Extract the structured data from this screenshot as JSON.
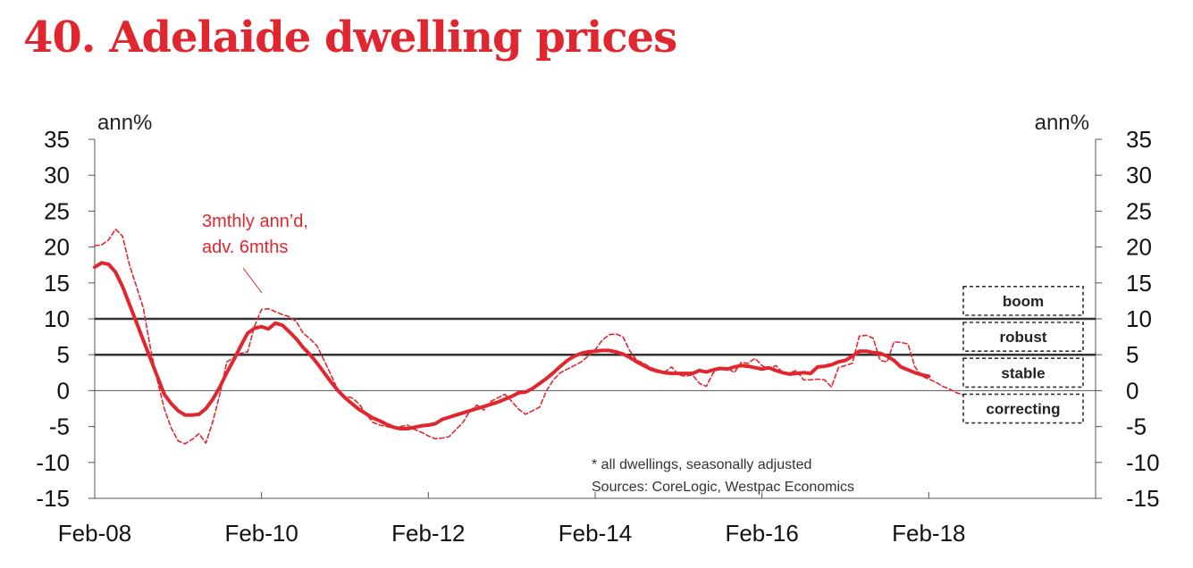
{
  "title": "40. Adelaide dwelling prices",
  "colors": {
    "title": "#e0262e",
    "series": "#e0262e",
    "axis": "#333333",
    "threshold": "#333333"
  },
  "chart_data": {
    "type": "line",
    "title": "40. Adelaide dwelling prices",
    "ylabel_left": "ann%",
    "ylabel_right": "ann%",
    "ylim": [
      -15,
      35
    ],
    "yticks": [
      35,
      30,
      25,
      20,
      15,
      10,
      5,
      0,
      -5,
      -10,
      -15
    ],
    "ytick_labels": [
      "35",
      "30",
      "25",
      "20",
      "15",
      "10",
      "5",
      "0",
      "-5",
      "-10",
      "-15"
    ],
    "xlim": [
      "2008-02",
      "2020-02"
    ],
    "xticks": [
      "2008-02",
      "2010-02",
      "2012-02",
      "2014-02",
      "2016-02",
      "2018-02",
      "2020-02"
    ],
    "xtick_labels": [
      "Feb-08",
      "Feb-10",
      "Feb-12",
      "Feb-14",
      "Feb-16",
      "Feb-18",
      ""
    ],
    "thresholds": [
      10,
      5
    ],
    "grid": false,
    "series": [
      {
        "style": "solid",
        "points": [
          [
            "2008-02",
            17.2
          ],
          [
            "2008-03",
            17.8
          ],
          [
            "2008-04",
            17.6
          ],
          [
            "2008-05",
            16.5
          ],
          [
            "2008-06",
            14.5
          ],
          [
            "2008-07",
            12
          ],
          [
            "2008-08",
            9.5
          ],
          [
            "2008-09",
            7
          ],
          [
            "2008-10",
            4.5
          ],
          [
            "2008-11",
            2
          ],
          [
            "2008-12",
            -0.5
          ],
          [
            "2009-01",
            -1.8
          ],
          [
            "2009-02",
            -2.8
          ],
          [
            "2009-03",
            -3.4
          ],
          [
            "2009-04",
            -3.4
          ],
          [
            "2009-05",
            -3.3
          ],
          [
            "2009-06",
            -2.5
          ],
          [
            "2009-07",
            -1.2
          ],
          [
            "2009-08",
            0.5
          ],
          [
            "2009-09",
            2.5
          ],
          [
            "2009-10",
            4.3
          ],
          [
            "2009-11",
            6.2
          ],
          [
            "2009-12",
            8
          ],
          [
            "2010-01",
            8.7
          ],
          [
            "2010-02",
            8.9
          ],
          [
            "2010-03",
            8.6
          ],
          [
            "2010-04",
            9.4
          ],
          [
            "2010-05",
            9.1
          ],
          [
            "2010-06",
            8.2
          ],
          [
            "2010-07",
            7.2
          ],
          [
            "2010-08",
            6
          ],
          [
            "2010-09",
            5
          ],
          [
            "2010-10",
            3.8
          ],
          [
            "2010-11",
            2.5
          ],
          [
            "2010-12",
            1.2
          ],
          [
            "2011-01",
            0
          ],
          [
            "2011-02",
            -1
          ],
          [
            "2011-03",
            -1.8
          ],
          [
            "2011-04",
            -2.6
          ],
          [
            "2011-05",
            -3.2
          ],
          [
            "2011-06",
            -3.8
          ],
          [
            "2011-07",
            -4.2
          ],
          [
            "2011-08",
            -4.7
          ],
          [
            "2011-09",
            -5.1
          ],
          [
            "2011-10",
            -5.3
          ],
          [
            "2011-11",
            -5.3
          ],
          [
            "2011-12",
            -5.1
          ],
          [
            "2012-01",
            -4.9
          ],
          [
            "2012-02",
            -4.8
          ],
          [
            "2012-03",
            -4.6
          ],
          [
            "2012-04",
            -4
          ],
          [
            "2012-05",
            -3.7
          ],
          [
            "2012-06",
            -3.4
          ],
          [
            "2012-07",
            -3.1
          ],
          [
            "2012-08",
            -2.8
          ],
          [
            "2012-09",
            -2.5
          ],
          [
            "2012-10",
            -2.2
          ],
          [
            "2012-11",
            -1.9
          ],
          [
            "2012-12",
            -1.6
          ],
          [
            "2013-01",
            -1.2
          ],
          [
            "2013-02",
            -0.8
          ],
          [
            "2013-03",
            -0.3
          ],
          [
            "2013-04",
            -0.2
          ],
          [
            "2013-05",
            0.3
          ],
          [
            "2013-06",
            1
          ],
          [
            "2013-07",
            1.7
          ],
          [
            "2013-08",
            2.5
          ],
          [
            "2013-09",
            3.4
          ],
          [
            "2013-10",
            4.2
          ],
          [
            "2013-11",
            4.8
          ],
          [
            "2013-12",
            5.2
          ],
          [
            "2014-01",
            5.4
          ],
          [
            "2014-02",
            5.5
          ],
          [
            "2014-03",
            5.6
          ],
          [
            "2014-04",
            5.6
          ],
          [
            "2014-05",
            5.4
          ],
          [
            "2014-06",
            5.1
          ],
          [
            "2014-07",
            4.6
          ],
          [
            "2014-08",
            4
          ],
          [
            "2014-09",
            3.5
          ],
          [
            "2014-10",
            3
          ],
          [
            "2014-11",
            2.7
          ],
          [
            "2014-12",
            2.5
          ],
          [
            "2015-01",
            2.4
          ],
          [
            "2015-02",
            2.4
          ],
          [
            "2015-03",
            2.4
          ],
          [
            "2015-04",
            2.4
          ],
          [
            "2015-05",
            2.8
          ],
          [
            "2015-06",
            2.6
          ],
          [
            "2015-07",
            2.9
          ],
          [
            "2015-08",
            3.1
          ],
          [
            "2015-09",
            3
          ],
          [
            "2015-10",
            3.3
          ],
          [
            "2015-11",
            3.5
          ],
          [
            "2015-12",
            3.4
          ],
          [
            "2016-01",
            3.2
          ],
          [
            "2016-02",
            3
          ],
          [
            "2016-03",
            3.2
          ],
          [
            "2016-04",
            2.8
          ],
          [
            "2016-05",
            2.5
          ],
          [
            "2016-06",
            2.3
          ],
          [
            "2016-07",
            2.4
          ],
          [
            "2016-08",
            2.5
          ],
          [
            "2016-09",
            2.4
          ],
          [
            "2016-10",
            3.3
          ],
          [
            "2016-11",
            3.4
          ],
          [
            "2016-12",
            3.6
          ],
          [
            "2017-01",
            4
          ],
          [
            "2017-02",
            4.2
          ],
          [
            "2017-03",
            4.8
          ],
          [
            "2017-04",
            5.5
          ],
          [
            "2017-05",
            5.5
          ],
          [
            "2017-06",
            5.3
          ],
          [
            "2017-07",
            5.2
          ],
          [
            "2017-08",
            4.8
          ],
          [
            "2017-09",
            4.2
          ],
          [
            "2017-10",
            3.3
          ],
          [
            "2017-11",
            2.9
          ],
          [
            "2017-12",
            2.5
          ],
          [
            "2018-01",
            2.2
          ],
          [
            "2018-02",
            2
          ]
        ]
      },
      {
        "name": "3mthly ann'd, adv. 6mths",
        "style": "dashed",
        "points": [
          [
            "2008-02",
            20.2
          ],
          [
            "2008-03",
            20.3
          ],
          [
            "2008-04",
            21
          ],
          [
            "2008-05",
            22.5
          ],
          [
            "2008-06",
            21.5
          ],
          [
            "2008-07",
            17.5
          ],
          [
            "2008-08",
            14.5
          ],
          [
            "2008-09",
            11.5
          ],
          [
            "2008-10",
            6
          ],
          [
            "2008-11",
            1.5
          ],
          [
            "2008-12",
            -2.5
          ],
          [
            "2009-01",
            -5.2
          ],
          [
            "2009-02",
            -7
          ],
          [
            "2009-03",
            -7.4
          ],
          [
            "2009-04",
            -6.8
          ],
          [
            "2009-05",
            -6
          ],
          [
            "2009-06",
            -7.3
          ],
          [
            "2009-07",
            -4.3
          ],
          [
            "2009-08",
            -0.5
          ],
          [
            "2009-09",
            4
          ],
          [
            "2009-10",
            4.6
          ],
          [
            "2009-11",
            5.2
          ],
          [
            "2009-12",
            5.4
          ],
          [
            "2010-01",
            9
          ],
          [
            "2010-02",
            11.3
          ],
          [
            "2010-03",
            11.4
          ],
          [
            "2010-04",
            11
          ],
          [
            "2010-05",
            10.6
          ],
          [
            "2010-06",
            10.3
          ],
          [
            "2010-07",
            9.6
          ],
          [
            "2010-08",
            8
          ],
          [
            "2010-09",
            7.2
          ],
          [
            "2010-10",
            6.2
          ],
          [
            "2010-11",
            4.2
          ],
          [
            "2010-12",
            2.2
          ],
          [
            "2011-01",
            0
          ],
          [
            "2011-02",
            -0.8
          ],
          [
            "2011-03",
            -1
          ],
          [
            "2011-04",
            -1.8
          ],
          [
            "2011-05",
            -3.2
          ],
          [
            "2011-06",
            -4.4
          ],
          [
            "2011-07",
            -4.8
          ],
          [
            "2011-08",
            -5
          ],
          [
            "2011-09",
            -5.2
          ],
          [
            "2011-10",
            -5
          ],
          [
            "2011-11",
            -4.8
          ],
          [
            "2011-12",
            -5.4
          ],
          [
            "2012-01",
            -5.8
          ],
          [
            "2012-02",
            -6.3
          ],
          [
            "2012-03",
            -6.7
          ],
          [
            "2012-04",
            -6.6
          ],
          [
            "2012-05",
            -6.4
          ],
          [
            "2012-06",
            -5.4
          ],
          [
            "2012-07",
            -4.4
          ],
          [
            "2012-08",
            -2.8
          ],
          [
            "2012-09",
            -2
          ],
          [
            "2012-10",
            -2.7
          ],
          [
            "2012-11",
            -1.5
          ],
          [
            "2012-12",
            -1
          ],
          [
            "2013-01",
            -0.5
          ],
          [
            "2013-02",
            -1.5
          ],
          [
            "2013-03",
            -2.6
          ],
          [
            "2013-04",
            -3.3
          ],
          [
            "2013-05",
            -2.8
          ],
          [
            "2013-06",
            -2.3
          ],
          [
            "2013-07",
            0
          ],
          [
            "2013-08",
            1.5
          ],
          [
            "2013-09",
            2.5
          ],
          [
            "2013-10",
            3
          ],
          [
            "2013-11",
            3.5
          ],
          [
            "2013-12",
            4
          ],
          [
            "2014-01",
            4.8
          ],
          [
            "2014-02",
            5.7
          ],
          [
            "2014-03",
            7
          ],
          [
            "2014-04",
            7.8
          ],
          [
            "2014-05",
            7.9
          ],
          [
            "2014-06",
            7.5
          ],
          [
            "2014-07",
            5.5
          ],
          [
            "2014-08",
            4.2
          ],
          [
            "2014-09",
            3.8
          ],
          [
            "2014-10",
            3.2
          ],
          [
            "2014-11",
            2.9
          ],
          [
            "2014-12",
            2.6
          ],
          [
            "2015-01",
            3.3
          ],
          [
            "2015-02",
            2.2
          ],
          [
            "2015-03",
            2
          ],
          [
            "2015-04",
            2.2
          ],
          [
            "2015-05",
            1
          ],
          [
            "2015-06",
            0.6
          ],
          [
            "2015-07",
            2.5
          ],
          [
            "2015-08",
            3.2
          ],
          [
            "2015-09",
            3.2
          ],
          [
            "2015-10",
            2.5
          ],
          [
            "2015-11",
            3.9
          ],
          [
            "2015-12",
            3.8
          ],
          [
            "2016-01",
            4.5
          ],
          [
            "2016-02",
            3.5
          ],
          [
            "2016-03",
            3
          ],
          [
            "2016-04",
            3.5
          ],
          [
            "2016-05",
            2.5
          ],
          [
            "2016-06",
            2.5
          ],
          [
            "2016-07",
            2.8
          ],
          [
            "2016-08",
            1.5
          ],
          [
            "2016-09",
            1.5
          ],
          [
            "2016-10",
            1.6
          ],
          [
            "2016-11",
            1.5
          ],
          [
            "2016-12",
            0.5
          ],
          [
            "2017-01",
            3.2
          ],
          [
            "2017-02",
            3.5
          ],
          [
            "2017-03",
            3.8
          ],
          [
            "2017-04",
            7.6
          ],
          [
            "2017-05",
            7.7
          ],
          [
            "2017-06",
            7.3
          ],
          [
            "2017-07",
            4.2
          ],
          [
            "2017-08",
            4
          ],
          [
            "2017-09",
            6.8
          ],
          [
            "2017-10",
            6.7
          ],
          [
            "2017-11",
            6.5
          ],
          [
            "2017-12",
            3.3
          ],
          [
            "2018-01",
            2
          ],
          [
            "2018-02",
            1.6
          ],
          [
            "2018-03",
            1.2
          ],
          [
            "2018-04",
            0.6
          ],
          [
            "2018-05",
            0.2
          ],
          [
            "2018-06",
            -0.3
          ],
          [
            "2018-07",
            -0.6
          ],
          [
            "2018-08",
            -0.9
          ],
          [
            "2018-09",
            -0.6
          ]
        ]
      }
    ],
    "annotations": {
      "series_label_line1": "3mthly ann’d,",
      "series_label_line2": "adv. 6mths",
      "note": "* all dwellings, seasonally adjusted",
      "sources": "Sources: CoreLogic, Westpac Economics"
    },
    "regime_boxes": [
      {
        "label": "boom",
        "lo": 10,
        "hi": 15
      },
      {
        "label": "robust",
        "lo": 5,
        "hi": 10
      },
      {
        "label": "stable",
        "lo": 0,
        "hi": 5
      },
      {
        "label": "correcting",
        "lo": -5,
        "hi": 0
      }
    ]
  }
}
